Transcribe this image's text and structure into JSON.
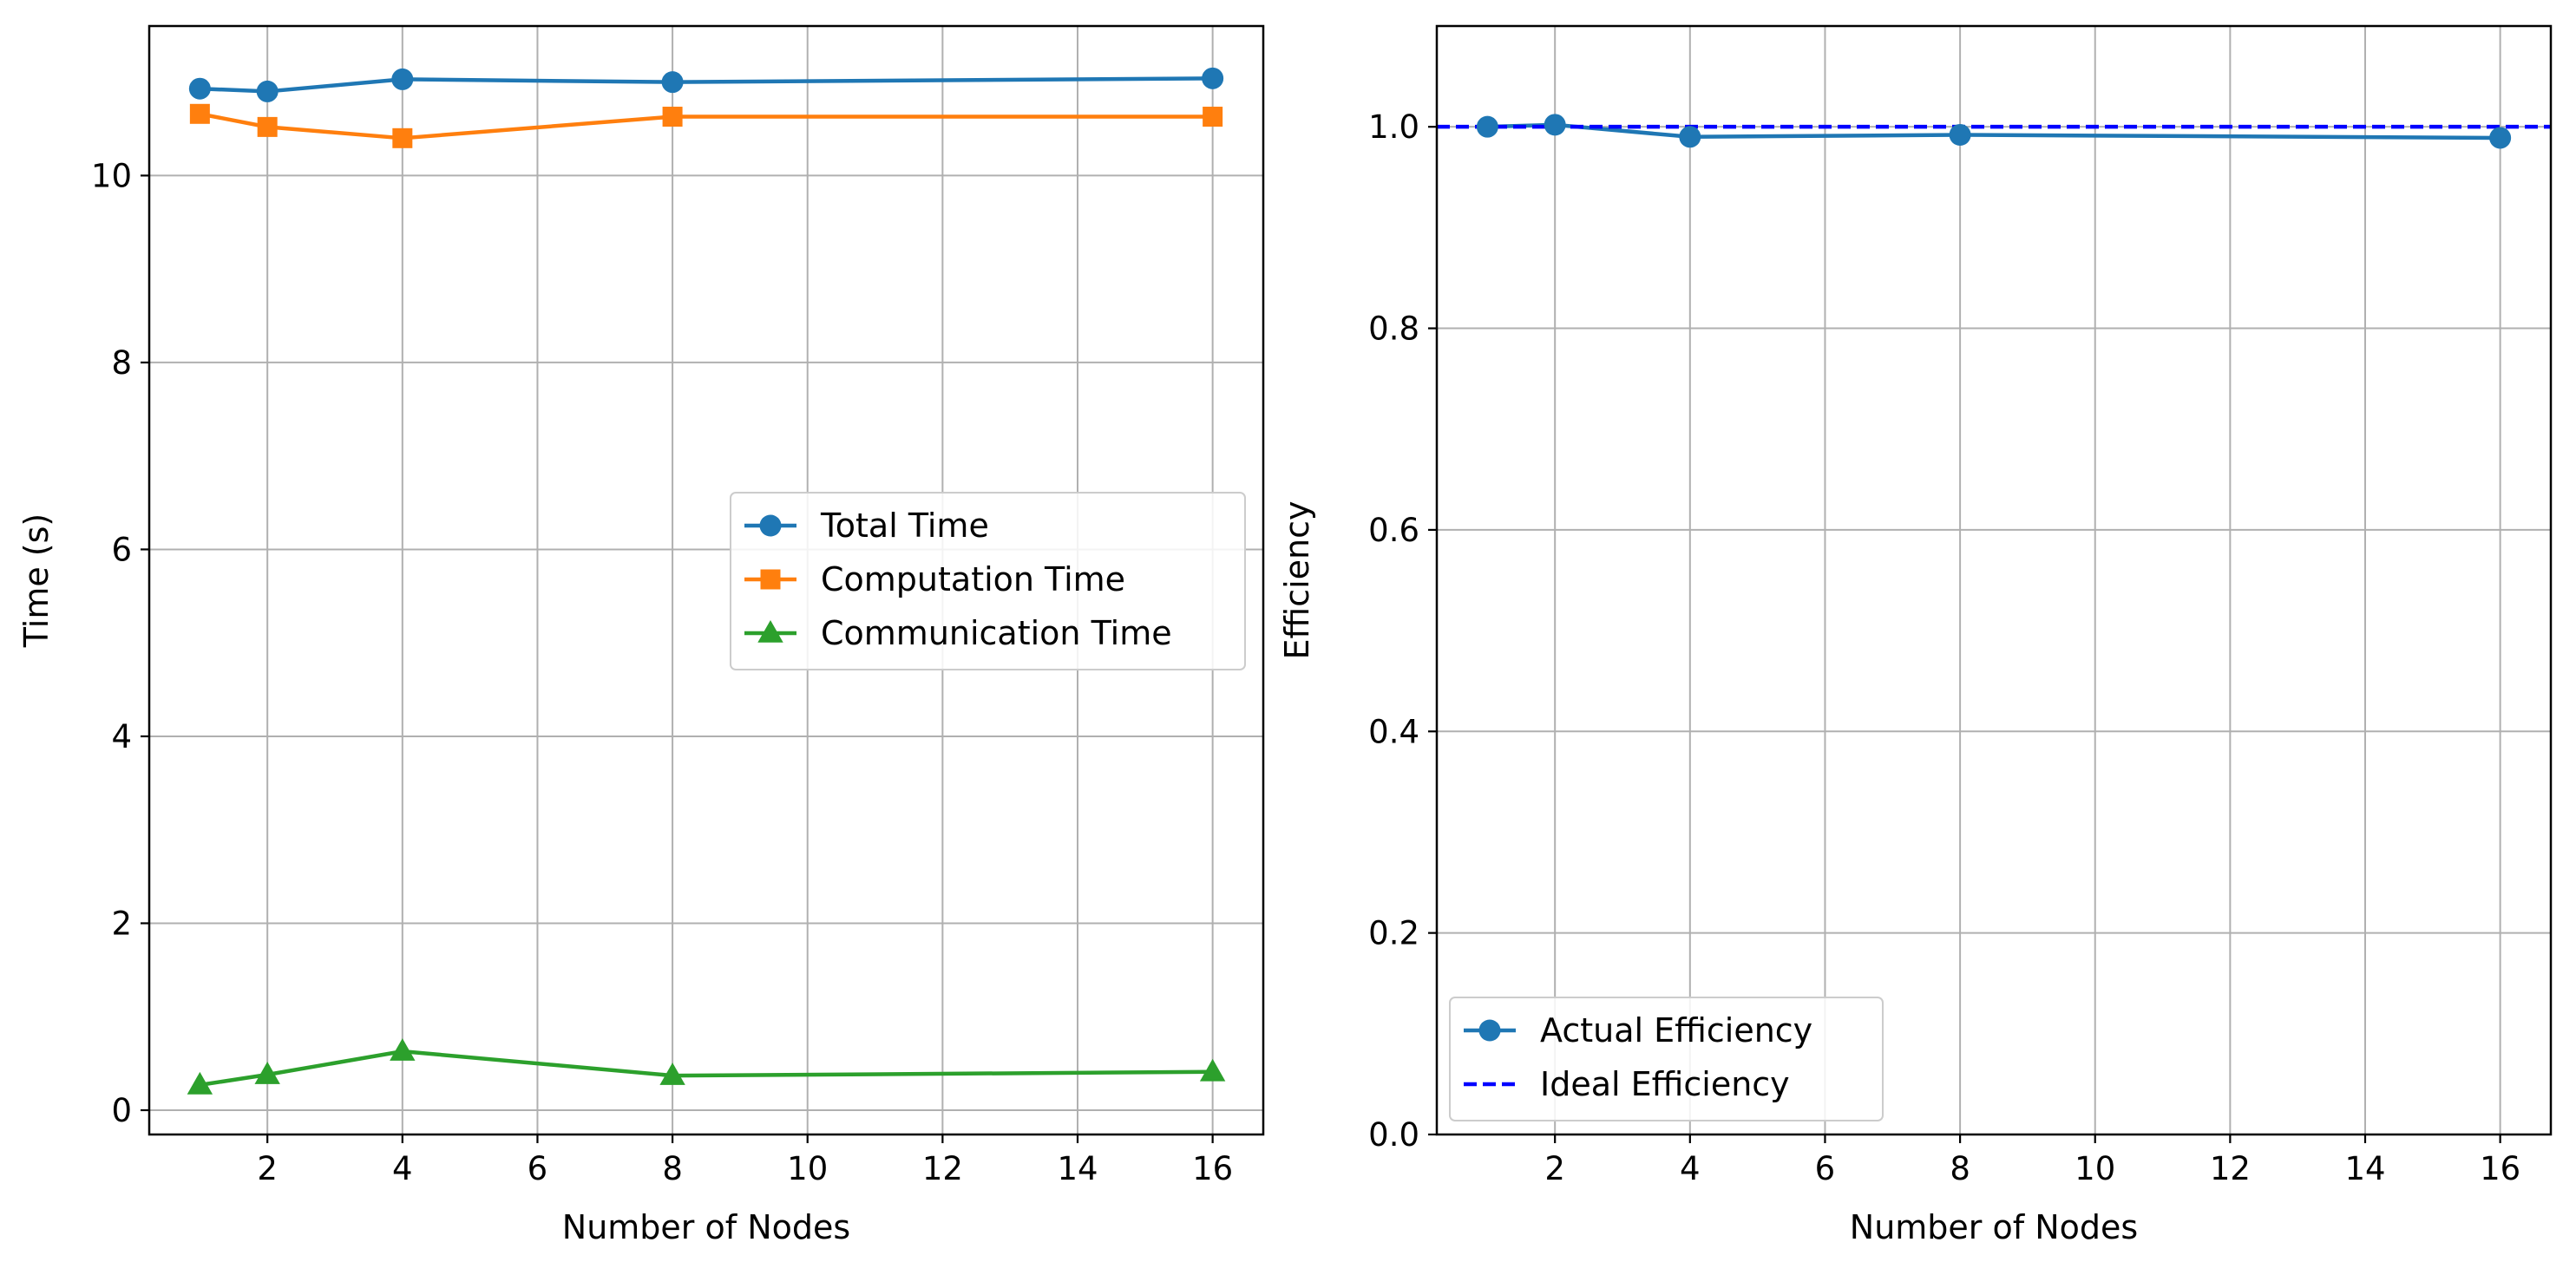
{
  "chart_data": [
    {
      "type": "line",
      "xlabel": "Number of Nodes",
      "ylabel": "Time (s)",
      "xlim": [
        0.25,
        16.75
      ],
      "ylim": [
        -0.26,
        11.6
      ],
      "xticks": [
        2,
        4,
        6,
        8,
        10,
        12,
        14,
        16
      ],
      "yticks": [
        0,
        2,
        4,
        6,
        8,
        10
      ],
      "ytick_decimals": 0,
      "grid": true,
      "legend_position": "center-right",
      "x": [
        1,
        2,
        4,
        8,
        16
      ],
      "series": [
        {
          "name": "Total Time",
          "values": [
            10.93,
            10.9,
            11.03,
            11.0,
            11.04
          ],
          "color": "#1f77b4",
          "marker": "circle",
          "linestyle": "solid"
        },
        {
          "name": "Computation Time",
          "values": [
            10.66,
            10.52,
            10.4,
            10.63,
            10.63
          ],
          "color": "#ff7f0e",
          "marker": "square",
          "linestyle": "solid"
        },
        {
          "name": "Communication Time",
          "values": [
            0.27,
            0.38,
            0.63,
            0.37,
            0.41
          ],
          "color": "#2ca02c",
          "marker": "triangle",
          "linestyle": "solid"
        }
      ]
    },
    {
      "type": "line",
      "xlabel": "Number of Nodes",
      "ylabel": "Efficiency",
      "xlim": [
        0.25,
        16.75
      ],
      "ylim": [
        0.0,
        1.1
      ],
      "xticks": [
        2,
        4,
        6,
        8,
        10,
        12,
        14,
        16
      ],
      "yticks": [
        0.0,
        0.2,
        0.4,
        0.6,
        0.8,
        1.0
      ],
      "ytick_decimals": 1,
      "grid": true,
      "legend_position": "bottom-left",
      "x": [
        1,
        2,
        4,
        8,
        16
      ],
      "series": [
        {
          "name": "Actual Efficiency",
          "values": [
            1.0,
            1.002,
            0.99,
            0.992,
            0.989
          ],
          "color": "#1f77b4",
          "marker": "circle",
          "linestyle": "solid"
        }
      ],
      "hlines": [
        {
          "name": "Ideal Efficiency",
          "y": 1.0,
          "color": "#0000ff",
          "linestyle": "dashed"
        }
      ]
    }
  ]
}
